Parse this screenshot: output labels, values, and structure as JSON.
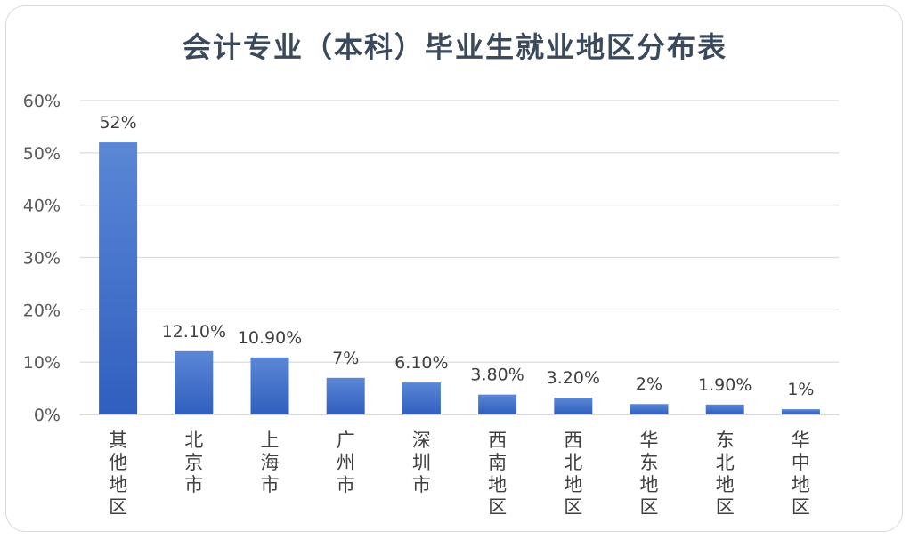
{
  "chart_data": {
    "type": "bar",
    "title": "会计专业（本科）毕业生就业地区分布表",
    "categories": [
      "其他地区",
      "北京市",
      "上海市",
      "广州市",
      "深圳市",
      "西南地区",
      "西北地区",
      "华东地区",
      "东北地区",
      "华中地区"
    ],
    "values": [
      52,
      12.1,
      10.9,
      7,
      6.1,
      3.8,
      3.2,
      2,
      1.9,
      1
    ],
    "data_labels": [
      "52%",
      "12.10%",
      "10.90%",
      "7%",
      "6.10%",
      "3.80%",
      "3.20%",
      "2%",
      "1.90%",
      "1%"
    ],
    "y_ticks": [
      "0%",
      "10%",
      "20%",
      "30%",
      "40%",
      "50%",
      "60%"
    ],
    "ylim": [
      0,
      60
    ],
    "xlabel": "",
    "ylabel": "",
    "grid": true,
    "bar_color_top": "#5b87d6",
    "bar_color_bottom": "#2f5fbf",
    "title_color": "#3a4a5c"
  }
}
